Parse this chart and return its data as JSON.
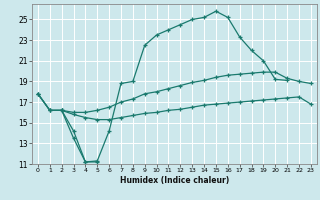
{
  "xlabel": "Humidex (Indice chaleur)",
  "bg_color": "#cde8ec",
  "grid_color": "#ffffff",
  "line_color": "#1a7a6e",
  "xlim": [
    -0.5,
    23.5
  ],
  "ylim": [
    11,
    26.5
  ],
  "xticks": [
    0,
    1,
    2,
    3,
    4,
    5,
    6,
    7,
    8,
    9,
    10,
    11,
    12,
    13,
    14,
    15,
    16,
    17,
    18,
    19,
    20,
    21,
    22,
    23
  ],
  "yticks": [
    11,
    13,
    15,
    17,
    19,
    21,
    23,
    25
  ],
  "curve1_x": [
    0,
    1,
    2,
    3,
    4,
    5,
    6,
    7,
    8,
    9,
    10,
    11,
    12,
    13,
    14,
    15,
    16,
    17,
    18,
    19,
    20,
    21
  ],
  "curve1_y": [
    17.8,
    16.2,
    16.2,
    13.5,
    11.2,
    11.3,
    14.2,
    18.8,
    19.0,
    22.5,
    23.5,
    24.0,
    24.5,
    25.0,
    25.2,
    25.8,
    25.2,
    23.3,
    22.0,
    21.0,
    19.2,
    19.1
  ],
  "curve2_x": [
    0,
    1,
    2,
    3,
    4,
    5,
    6,
    7,
    8,
    9,
    10,
    11,
    12,
    13,
    14,
    15,
    16,
    17,
    18,
    19,
    20,
    21,
    22,
    23
  ],
  "curve2_y": [
    17.8,
    16.2,
    16.2,
    16.0,
    16.0,
    16.2,
    16.5,
    17.0,
    17.3,
    17.8,
    18.0,
    18.3,
    18.6,
    18.9,
    19.1,
    19.4,
    19.6,
    19.7,
    19.8,
    19.9,
    19.9,
    19.3,
    19.0,
    18.8
  ],
  "curve3_x": [
    0,
    1,
    2,
    3,
    4,
    5,
    6,
    7,
    8,
    9,
    10,
    11,
    12,
    13,
    14,
    15,
    16,
    17,
    18,
    19,
    20,
    21,
    22,
    23
  ],
  "curve3_y": [
    17.8,
    16.2,
    16.2,
    15.8,
    15.5,
    15.3,
    15.3,
    15.5,
    15.7,
    15.9,
    16.0,
    16.2,
    16.3,
    16.5,
    16.7,
    16.8,
    16.9,
    17.0,
    17.1,
    17.2,
    17.3,
    17.4,
    17.5,
    16.8
  ],
  "curve4_x": [
    2,
    3,
    4,
    5
  ],
  "curve4_y": [
    16.2,
    14.2,
    11.2,
    11.2
  ]
}
